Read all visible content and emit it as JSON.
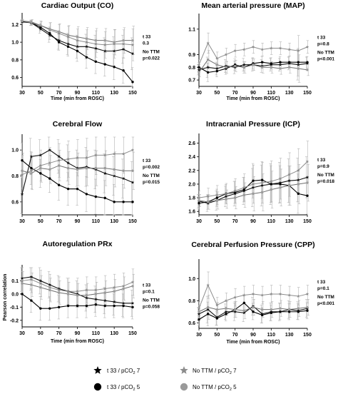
{
  "chart_data": [
    {
      "type": "line",
      "title": "Cardiac Output (CO)",
      "xlabel": "Time (min from ROSC)",
      "ylabel": "",
      "x": [
        30,
        40,
        50,
        60,
        70,
        80,
        90,
        100,
        110,
        120,
        130,
        140,
        150
      ],
      "xticks": [
        "30",
        "50",
        "70",
        "90",
        "110",
        "130",
        "150"
      ],
      "ylim": [
        0.5,
        1.3
      ],
      "yticks": [
        "0.6",
        "0.8",
        "1.0",
        "1.2"
      ],
      "stats": [
        "t 33",
        "0.3",
        "No TTM",
        "p=0.022"
      ],
      "series": [
        {
          "name": "t 33 / pCO2 7",
          "values": [
            1.23,
            1.22,
            1.15,
            1.08,
            1.02,
            0.98,
            0.95,
            0.95,
            0.93,
            0.9,
            0.9,
            0.92,
            0.87
          ]
        },
        {
          "name": "t 33 / pCO2 5",
          "values": [
            1.24,
            1.22,
            1.17,
            1.1,
            1.0,
            0.95,
            0.9,
            0.83,
            0.78,
            0.75,
            0.72,
            0.68,
            0.55
          ]
        },
        {
          "name": "No TTM / pCO2 7",
          "values": [
            1.24,
            1.22,
            1.19,
            1.14,
            1.1,
            1.06,
            1.02,
            1.0,
            0.98,
            0.97,
            0.98,
            0.98,
            0.97
          ]
        },
        {
          "name": "No TTM / pCO2 5",
          "values": [
            1.24,
            1.23,
            1.19,
            1.15,
            1.12,
            1.08,
            1.06,
            1.04,
            1.02,
            1.02,
            1.0,
            1.02,
            1.02
          ]
        }
      ],
      "error": [
        0.02,
        0.03,
        0.05,
        0.08,
        0.1,
        0.12,
        0.13,
        0.14,
        0.15,
        0.15,
        0.16,
        0.16,
        0.18
      ]
    },
    {
      "type": "line",
      "title": "Mean arterial pressure (MAP)",
      "xlabel": "Time (min from ROSC)",
      "ylabel": "",
      "x": [
        30,
        40,
        50,
        60,
        70,
        80,
        90,
        100,
        110,
        120,
        130,
        140,
        150
      ],
      "xticks": [
        "30",
        "50",
        "70",
        "90",
        "110",
        "130",
        "150"
      ],
      "ylim": [
        0.65,
        1.2
      ],
      "yticks": [
        "0.7",
        "0.8",
        "0.9",
        "1.1"
      ],
      "stats": [
        "t 33",
        "p=0.8",
        "No TTM",
        "p<0.001"
      ],
      "series": [
        {
          "name": "t 33 / pCO2 7",
          "values": [
            0.78,
            0.8,
            0.79,
            0.81,
            0.8,
            0.82,
            0.82,
            0.81,
            0.82,
            0.82,
            0.83,
            0.82,
            0.83
          ]
        },
        {
          "name": "t 33 / pCO2 5",
          "values": [
            0.8,
            0.76,
            0.77,
            0.79,
            0.82,
            0.8,
            0.83,
            0.84,
            0.83,
            0.84,
            0.84,
            0.84,
            0.84
          ]
        },
        {
          "name": "No TTM / pCO2 7",
          "values": [
            0.82,
            0.99,
            0.87,
            0.9,
            0.93,
            0.94,
            0.96,
            0.94,
            0.95,
            0.95,
            0.94,
            0.93,
            0.96
          ]
        },
        {
          "name": "No TTM / pCO2 5",
          "values": [
            0.76,
            0.86,
            0.82,
            0.8,
            0.81,
            0.8,
            0.82,
            0.8,
            0.8,
            0.79,
            0.8,
            0.79,
            0.78
          ]
        }
      ],
      "error": [
        0.04,
        0.08,
        0.05,
        0.05,
        0.05,
        0.05,
        0.05,
        0.05,
        0.05,
        0.05,
        0.05,
        0.12,
        0.05
      ]
    },
    {
      "type": "line",
      "title": "Cerebral Flow",
      "xlabel": "",
      "ylabel": "",
      "x": [
        30,
        40,
        50,
        60,
        70,
        80,
        90,
        100,
        110,
        120,
        130,
        140,
        150
      ],
      "xticks": [
        "30",
        "50",
        "70",
        "90",
        "110",
        "130",
        "150"
      ],
      "ylim": [
        0.5,
        1.1
      ],
      "yticks": [
        "0.6",
        "0.8",
        "1.0"
      ],
      "stats": [
        "t 33",
        "p=0.002",
        "No TTM",
        "p=0.015"
      ],
      "series": [
        {
          "name": "t 33 / pCO2 7",
          "values": [
            0.66,
            0.95,
            0.96,
            1.0,
            0.95,
            0.9,
            0.86,
            0.87,
            0.85,
            0.82,
            0.8,
            0.78,
            0.75
          ]
        },
        {
          "name": "t 33 / pCO2 5",
          "values": [
            0.92,
            0.86,
            0.82,
            0.78,
            0.73,
            0.7,
            0.7,
            0.66,
            0.64,
            0.63,
            0.6,
            0.6,
            0.6
          ]
        },
        {
          "name": "No TTM / pCO2 7",
          "values": [
            0.81,
            0.84,
            0.88,
            0.9,
            0.92,
            0.93,
            0.94,
            0.94,
            0.96,
            0.96,
            0.97,
            0.97,
            1.0
          ]
        },
        {
          "name": "No TTM / pCO2 5",
          "values": [
            0.84,
            0.82,
            0.86,
            0.85,
            0.88,
            0.86,
            0.85,
            0.86,
            0.86,
            0.86,
            0.85,
            0.84,
            0.84
          ]
        }
      ],
      "error": [
        0.15,
        0.14,
        0.12,
        0.12,
        0.13,
        0.14,
        0.14,
        0.15,
        0.15,
        0.15,
        0.15,
        0.15,
        0.16
      ]
    },
    {
      "type": "line",
      "title": "Intracranial Pressure (ICP)",
      "xlabel": "",
      "ylabel": "",
      "x": [
        30,
        40,
        50,
        60,
        70,
        80,
        90,
        100,
        110,
        120,
        130,
        140,
        150
      ],
      "xticks": [
        "30",
        "50",
        "70",
        "90",
        "110",
        "130",
        "150"
      ],
      "ylim": [
        1.55,
        2.7
      ],
      "yticks": [
        "1.6",
        "1.8",
        "2.0",
        "2.2",
        "2.4",
        "2.6"
      ],
      "stats": [
        "t 33",
        "p=0.9",
        "No TTM",
        "p=0.018"
      ],
      "series": [
        {
          "name": "t 33 / pCO2 7",
          "values": [
            1.75,
            1.72,
            1.76,
            1.82,
            1.86,
            1.9,
            1.95,
            1.98,
            2.0,
            2.02,
            2.05,
            2.06,
            2.1
          ]
        },
        {
          "name": "t 33 / pCO2 5",
          "values": [
            1.72,
            1.74,
            1.8,
            1.86,
            1.88,
            1.92,
            2.05,
            2.06,
            2.0,
            2.0,
            1.98,
            1.86,
            1.83
          ]
        },
        {
          "name": "No TTM / pCO2 7",
          "values": [
            1.8,
            1.82,
            1.84,
            1.86,
            1.9,
            1.95,
            2.0,
            2.02,
            2.04,
            2.08,
            2.14,
            2.2,
            2.33
          ]
        },
        {
          "name": "No TTM / pCO2 5",
          "values": [
            1.76,
            1.74,
            1.76,
            1.78,
            1.8,
            1.84,
            1.86,
            1.88,
            1.92,
            1.95,
            1.98,
            2.0,
            2.02
          ]
        }
      ],
      "error": [
        0.1,
        0.12,
        0.14,
        0.15,
        0.18,
        0.2,
        0.28,
        0.3,
        0.3,
        0.3,
        0.32,
        0.32,
        0.3
      ]
    },
    {
      "type": "line",
      "title": "Autoregulation PRx",
      "xlabel": "Time (min from ROSC)",
      "ylabel": "Pearson correlation",
      "x": [
        30,
        40,
        50,
        60,
        70,
        80,
        90,
        100,
        110,
        120,
        130,
        140,
        150
      ],
      "xticks": [
        "30",
        "50",
        "70",
        "90",
        "110",
        "130",
        "150"
      ],
      "ylim": [
        -0.25,
        0.2
      ],
      "yticks": [
        "-0.2",
        "-0.1",
        "0.0",
        "0.1"
      ],
      "stats": [
        "t 33",
        "p=0.1",
        "No TTM",
        "p=0.058"
      ],
      "series": [
        {
          "name": "t 33 / pCO2 7",
          "values": [
            0.12,
            0.13,
            0.1,
            0.07,
            0.04,
            0.02,
            0.0,
            -0.03,
            -0.04,
            -0.05,
            -0.06,
            -0.07,
            -0.07
          ]
        },
        {
          "name": "t 33 / pCO2 5",
          "values": [
            0.0,
            -0.05,
            -0.11,
            -0.11,
            -0.1,
            -0.09,
            -0.09,
            -0.09,
            -0.08,
            -0.09,
            -0.09,
            -0.09,
            -0.1
          ]
        },
        {
          "name": "No TTM / pCO2 7",
          "values": [
            0.1,
            0.11,
            0.08,
            0.05,
            0.03,
            0.02,
            0.02,
            0.03,
            0.03,
            0.04,
            0.05,
            0.06,
            0.09
          ]
        },
        {
          "name": "No TTM / pCO2 5",
          "values": [
            0.08,
            0.07,
            0.05,
            0.03,
            0.01,
            0.0,
            -0.01,
            -0.01,
            0.0,
            0.01,
            0.02,
            0.04,
            0.06
          ]
        }
      ],
      "error": [
        0.1,
        0.1,
        0.1,
        0.1,
        0.1,
        0.1,
        0.1,
        0.1,
        0.1,
        0.1,
        0.1,
        0.1,
        0.1
      ]
    },
    {
      "type": "line",
      "title": "Cerebral Perfusion Pressure (CPP)",
      "xlabel": "Time (min from ROSC)",
      "ylabel": "",
      "x": [
        30,
        40,
        50,
        60,
        70,
        80,
        90,
        100,
        110,
        120,
        130,
        140,
        150
      ],
      "xticks": [
        "30",
        "50",
        "70",
        "90",
        "110",
        "130",
        "150"
      ],
      "ylim": [
        0.55,
        1.15
      ],
      "yticks": [
        "0.6",
        "0.8",
        "1.0"
      ],
      "stats": [
        "t 33",
        "p=0.1",
        "No TTM",
        "p<0.001"
      ],
      "series": [
        {
          "name": "t 33 / pCO2 7",
          "values": [
            0.68,
            0.72,
            0.65,
            0.7,
            0.7,
            0.69,
            0.75,
            0.68,
            0.7,
            0.7,
            0.72,
            0.71,
            0.73
          ]
        },
        {
          "name": "t 33 / pCO2 5",
          "values": [
            0.63,
            0.68,
            0.64,
            0.68,
            0.72,
            0.78,
            0.7,
            0.67,
            0.69,
            0.7,
            0.7,
            0.7,
            0.71
          ]
        },
        {
          "name": "No TTM / pCO2 7",
          "values": [
            0.73,
            0.94,
            0.76,
            0.8,
            0.83,
            0.85,
            0.86,
            0.85,
            0.86,
            0.86,
            0.85,
            0.84,
            0.86
          ]
        },
        {
          "name": "No TTM / pCO2 5",
          "values": [
            0.7,
            0.74,
            0.72,
            0.73,
            0.72,
            0.71,
            0.74,
            0.72,
            0.72,
            0.73,
            0.72,
            0.73,
            0.74
          ]
        }
      ],
      "error": [
        0.06,
        0.12,
        0.07,
        0.07,
        0.08,
        0.08,
        0.08,
        0.08,
        0.08,
        0.08,
        0.08,
        0.08,
        0.08
      ]
    }
  ],
  "legend": {
    "items": [
      {
        "label": "t 33 / pCO",
        "sub": "2",
        "tail": " 7",
        "marker": "star",
        "color": "#000000"
      },
      {
        "label": "No TTM / pCO",
        "sub": "2",
        "tail": " 7",
        "marker": "star",
        "color": "#8c8c8c"
      },
      {
        "label": "t 33 / pCO",
        "sub": "2",
        "tail": " 5",
        "marker": "circle",
        "color": "#000000"
      },
      {
        "label": "No TTM / pCO",
        "sub": "2",
        "tail": " 5",
        "marker": "circle",
        "color": "#9a9a9a"
      }
    ]
  },
  "colors": {
    "t33_p7": "#111111",
    "t33_p5": "#000000",
    "nottm_p7": "#8c8c8c",
    "nottm_p5": "#6e6e6e"
  }
}
